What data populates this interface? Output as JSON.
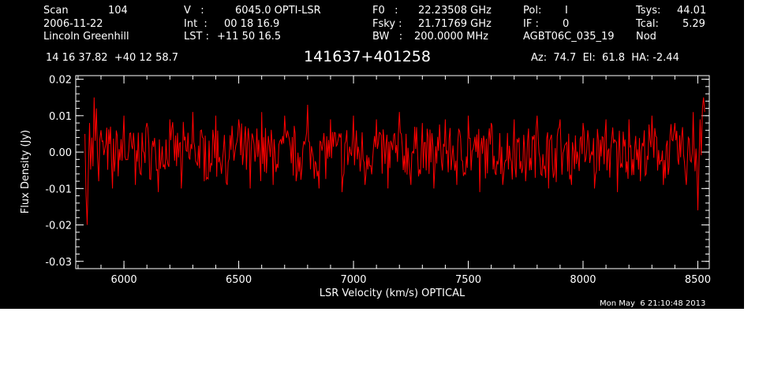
{
  "header": {
    "col1": {
      "scan_label": "Scan",
      "scan_value": "104",
      "date": "2006-11-22",
      "observer": "Lincoln Greenhill"
    },
    "col2": {
      "v_label": "V   :",
      "v_value": "6045.0 OPTI-LSR",
      "int_label": "Int  :",
      "int_value": "00 18 16.9",
      "lst_label": "LST :",
      "lst_value": "+11 50 16.5"
    },
    "col3": {
      "f0_label": "F0   :",
      "f0_value": "22.23508 GHz",
      "fsky_label": "Fsky :",
      "fsky_value": "21.71769 GHz",
      "bw_label": "BW   :",
      "bw_value": "200.0000 MHz"
    },
    "col4": {
      "pol_label": "Pol:",
      "pol_value": "I",
      "if_label": "IF :",
      "if_value": "0",
      "project": "AGBT06C_035_19"
    },
    "col5": {
      "tsys_label": "Tsys:",
      "tsys_value": "44.01",
      "tcal_label": "Tcal:",
      "tcal_value": "5.29",
      "mode": "Nod"
    },
    "coords": "14 16 37.82  +40 12 58.7",
    "source": "141637+401258",
    "az_el_ha": "Az:  74.7  El:  61.8  HA: -2.44"
  },
  "footer": {
    "timestamp": "Mon May  6 21:10:48 2013"
  },
  "colors": {
    "background": "#000000",
    "axes": "#ffffff",
    "series": "#ff0000"
  },
  "chart_data": {
    "type": "line",
    "title": "141637+401258",
    "xlabel": "LSR Velocity (km/s) OPTICAL",
    "ylabel": "Flux Density (Jy)",
    "xlim": [
      5790,
      8550
    ],
    "ylim": [
      -0.032,
      0.021
    ],
    "xticks": [
      6000,
      6500,
      7000,
      7500,
      8000,
      8500
    ],
    "xtick_labels": [
      "6000",
      "6500",
      "7000",
      "7500",
      "8000",
      "8500"
    ],
    "yticks": [
      0.02,
      0.01,
      0.0,
      -0.01,
      -0.02,
      -0.03
    ],
    "ytick_labels": [
      "0.02",
      "0.01",
      "0.00",
      "-0.01",
      "-0.02",
      "-0.03"
    ],
    "grid": false,
    "series": [
      {
        "x": [
          5830,
          5835,
          5840,
          5845,
          5850,
          5860,
          5870,
          5880,
          5890,
          5900,
          5950,
          6000,
          6050,
          6100,
          6150,
          6200,
          6250,
          6300,
          6350,
          6400,
          6450,
          6500,
          6550,
          6600,
          6650,
          6700,
          6750,
          6800,
          6850,
          6900,
          6950,
          7000,
          7050,
          7100,
          7150,
          7200,
          7250,
          7300,
          7350,
          7400,
          7450,
          7500,
          7550,
          7600,
          7650,
          7700,
          7750,
          7800,
          7850,
          7900,
          7950,
          8000,
          8050,
          8100,
          8150,
          8200,
          8250,
          8300,
          8350,
          8400,
          8450,
          8480,
          8500,
          8510,
          8520,
          8525,
          8530
        ],
        "y": [
          0.005,
          -0.012,
          -0.02,
          -0.005,
          0.008,
          0.004,
          0.015,
          0.012,
          -0.008,
          0.006,
          -0.01,
          0.01,
          -0.009,
          0.008,
          -0.011,
          0.009,
          -0.01,
          0.011,
          -0.008,
          0.01,
          -0.009,
          0.009,
          -0.01,
          0.011,
          -0.009,
          0.01,
          -0.008,
          0.013,
          -0.01,
          0.009,
          -0.011,
          0.01,
          -0.009,
          0.009,
          -0.01,
          0.011,
          -0.009,
          0.008,
          -0.01,
          0.009,
          -0.009,
          0.01,
          -0.011,
          0.008,
          -0.009,
          0.009,
          -0.008,
          0.01,
          -0.01,
          0.009,
          -0.009,
          0.008,
          -0.01,
          0.009,
          -0.011,
          0.009,
          -0.008,
          0.01,
          -0.009,
          0.008,
          -0.009,
          0.011,
          -0.016,
          0.009,
          0.012,
          0.015,
          0.011
        ]
      }
    ]
  }
}
